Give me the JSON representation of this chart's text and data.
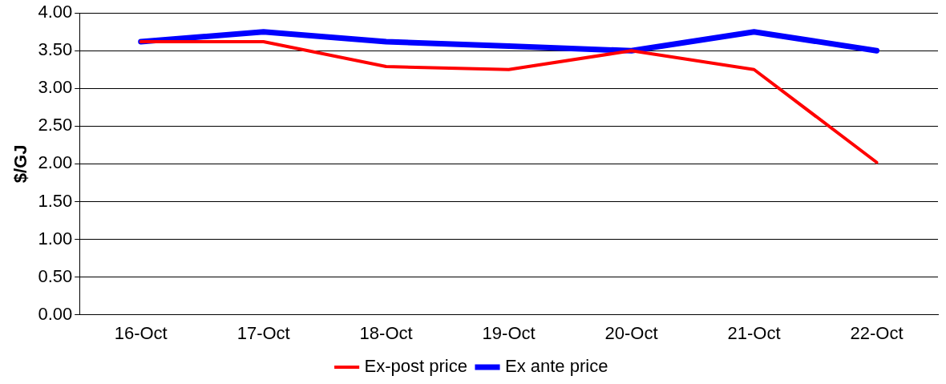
{
  "chart_data": {
    "type": "line",
    "ylabel": "$/GJ",
    "categories": [
      "16-Oct",
      "17-Oct",
      "18-Oct",
      "19-Oct",
      "20-Oct",
      "21-Oct",
      "22-Oct"
    ],
    "series": [
      {
        "name": "Ex ante price",
        "color": "#0000ff",
        "values": [
          3.62,
          3.75,
          3.62,
          3.56,
          3.5,
          3.75,
          3.5
        ]
      },
      {
        "name": "Ex-post price",
        "color": "#ff0000",
        "values": [
          3.62,
          3.62,
          3.29,
          3.25,
          3.5,
          3.25,
          2.02
        ]
      }
    ],
    "ylim": [
      0,
      4
    ],
    "yticks": [
      {
        "value": 0,
        "label": "0.00"
      },
      {
        "value": 0.5,
        "label": "0.50"
      },
      {
        "value": 1,
        "label": "1.00"
      },
      {
        "value": 1.5,
        "label": "1.50"
      },
      {
        "value": 2,
        "label": "2.00"
      },
      {
        "value": 2.5,
        "label": "2.50"
      },
      {
        "value": 3,
        "label": "3.00"
      },
      {
        "value": 3.5,
        "label": "3.50"
      },
      {
        "value": 4,
        "label": "4.00"
      }
    ],
    "grid": "y",
    "legend": "bottom",
    "marker": "none",
    "line_style": "solid"
  }
}
